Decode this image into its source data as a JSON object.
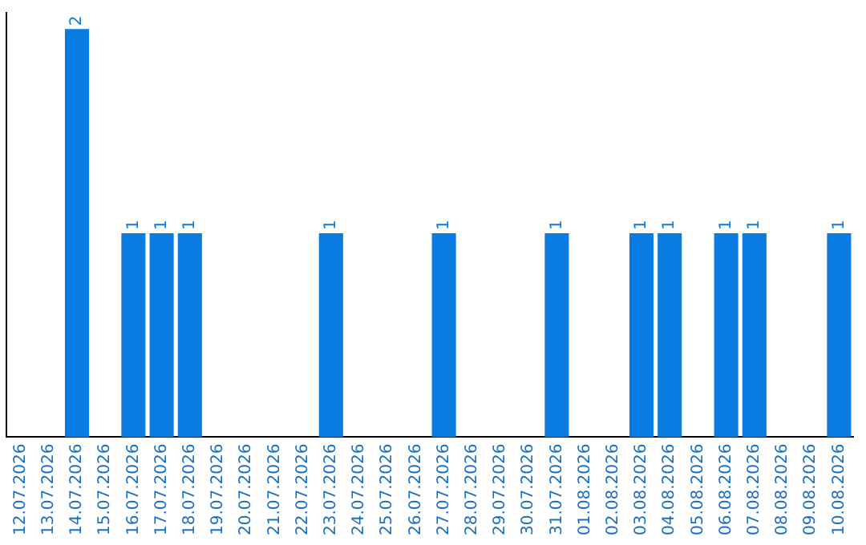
{
  "chart_data": {
    "type": "bar",
    "categories": [
      "12.07.2026",
      "13.07.2026",
      "14.07.2026",
      "15.07.2026",
      "16.07.2026",
      "17.07.2026",
      "18.07.2026",
      "19.07.2026",
      "20.07.2026",
      "21.07.2026",
      "22.07.2026",
      "23.07.2026",
      "24.07.2026",
      "25.07.2026",
      "26.07.2026",
      "27.07.2026",
      "28.07.2026",
      "29.07.2026",
      "30.07.2026",
      "31.07.2026",
      "01.08.2026",
      "02.08.2026",
      "03.08.2026",
      "04.08.2026",
      "05.08.2026",
      "06.08.2026",
      "07.08.2026",
      "08.08.2026",
      "09.08.2026",
      "10.08.2026"
    ],
    "values": [
      0,
      0,
      2,
      0,
      1,
      1,
      1,
      0,
      0,
      0,
      0,
      1,
      0,
      0,
      0,
      1,
      0,
      0,
      0,
      1,
      0,
      0,
      1,
      1,
      0,
      1,
      1,
      0,
      0,
      1
    ],
    "value_labels": [
      null,
      null,
      "2",
      null,
      "1",
      "1",
      "1",
      null,
      null,
      null,
      null,
      "1",
      null,
      null,
      null,
      "1",
      null,
      null,
      null,
      "1",
      null,
      null,
      "1",
      "1",
      null,
      "1",
      "1",
      null,
      null,
      "1"
    ],
    "color": "#0a7be0",
    "ylim": [
      0,
      2.08
    ],
    "tick_labels": "x",
    "grid": false,
    "legend": false
  }
}
